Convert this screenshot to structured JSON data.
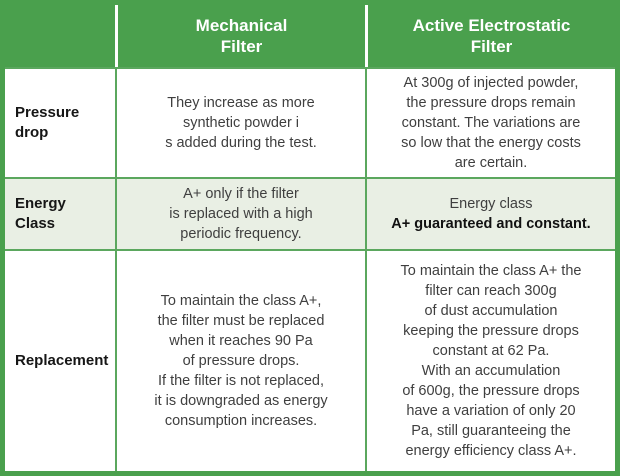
{
  "table": {
    "title_semantic": "Filter comparison table",
    "header": {
      "corner": "",
      "mechanical": "Mechanical\nFilter",
      "electrostatic": "Active Electrostatic\nFilter"
    },
    "rows": [
      {
        "label": "Pressure\ndrop",
        "mechanical": "They increase as more\nsynthetic powder i\ns added during the test.",
        "electrostatic": "At 300g of injected powder,\nthe pressure drops remain\nconstant. The variations are\nso low that the energy costs\nare certain."
      },
      {
        "label": "Energy\nClass",
        "mechanical": "A+ only if the filter\nis replaced with a high\nperiodic frequency.",
        "electrostatic_line1": "Energy class",
        "electrostatic_line2_bold": "A+ guaranteed and constant."
      },
      {
        "label": "Replacement",
        "mechanical": "To maintain the class A+,\nthe filter must be replaced\nwhen it reaches 90 Pa\nof pressure drops.\nIf the filter is not replaced,\nit is downgraded as energy\nconsumption increases.",
        "electrostatic": "To maintain the class A+ the\nfilter can reach 300g\nof dust accumulation\nkeeping the pressure drops\nconstant at 62 Pa.\nWith an accumulation\nof 600g, the pressure drops\nhave a variation of only 20\nPa, still guaranteeing the\nenergy efficiency class A+."
      }
    ],
    "colors": {
      "header_green": "#4aa04d",
      "border_green": "#5ba75e",
      "energy_row_bg": "#e9efe4",
      "body_text": "#3f3f3f",
      "label_text": "#161616",
      "header_text": "#ffffff"
    }
  }
}
